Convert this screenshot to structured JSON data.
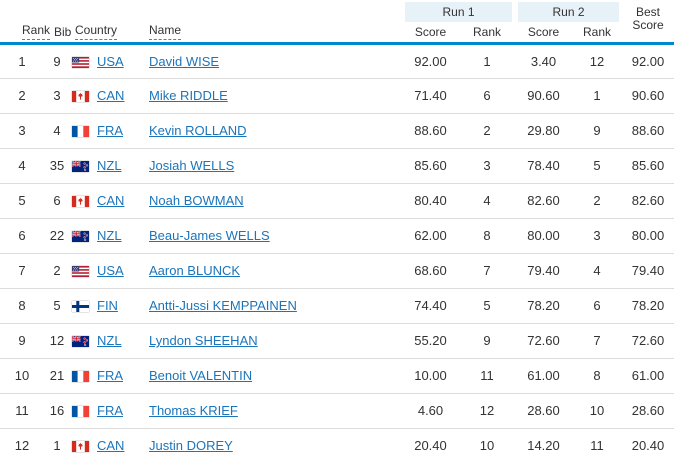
{
  "header": {
    "run1_label": "Run 1",
    "run2_label": "Run 2",
    "best_score_line1": "Best",
    "best_score_line2": "Score",
    "columns": {
      "rank": "Rank",
      "bib": "Bib",
      "country": "Country",
      "name": "Name",
      "run1_score": "Score",
      "run1_rank": "Rank",
      "run2_score": "Score",
      "run2_rank": "Rank"
    }
  },
  "rows": [
    {
      "rank": "1",
      "bib": "9",
      "country_code": "USA",
      "name": "David WISE",
      "run1_score": "92.00",
      "run1_rank": "1",
      "run2_score": "3.40",
      "run2_rank": "12",
      "best_score": "92.00"
    },
    {
      "rank": "2",
      "bib": "3",
      "country_code": "CAN",
      "name": "Mike RIDDLE",
      "run1_score": "71.40",
      "run1_rank": "6",
      "run2_score": "90.60",
      "run2_rank": "1",
      "best_score": "90.60"
    },
    {
      "rank": "3",
      "bib": "4",
      "country_code": "FRA",
      "name": "Kevin ROLLAND",
      "run1_score": "88.60",
      "run1_rank": "2",
      "run2_score": "29.80",
      "run2_rank": "9",
      "best_score": "88.60"
    },
    {
      "rank": "4",
      "bib": "35",
      "country_code": "NZL",
      "name": "Josiah WELLS",
      "run1_score": "85.60",
      "run1_rank": "3",
      "run2_score": "78.40",
      "run2_rank": "5",
      "best_score": "85.60"
    },
    {
      "rank": "5",
      "bib": "6",
      "country_code": "CAN",
      "name": "Noah BOWMAN",
      "run1_score": "80.40",
      "run1_rank": "4",
      "run2_score": "82.60",
      "run2_rank": "2",
      "best_score": "82.60"
    },
    {
      "rank": "6",
      "bib": "22",
      "country_code": "NZL",
      "name": "Beau-James WELLS",
      "run1_score": "62.00",
      "run1_rank": "8",
      "run2_score": "80.00",
      "run2_rank": "3",
      "best_score": "80.00"
    },
    {
      "rank": "7",
      "bib": "2",
      "country_code": "USA",
      "name": "Aaron BLUNCK",
      "run1_score": "68.60",
      "run1_rank": "7",
      "run2_score": "79.40",
      "run2_rank": "4",
      "best_score": "79.40"
    },
    {
      "rank": "8",
      "bib": "5",
      "country_code": "FIN",
      "name": "Antti-Jussi KEMPPAINEN",
      "run1_score": "74.40",
      "run1_rank": "5",
      "run2_score": "78.20",
      "run2_rank": "6",
      "best_score": "78.20"
    },
    {
      "rank": "9",
      "bib": "12",
      "country_code": "NZL",
      "name": "Lyndon SHEEHAN",
      "run1_score": "55.20",
      "run1_rank": "9",
      "run2_score": "72.60",
      "run2_rank": "7",
      "best_score": "72.60"
    },
    {
      "rank": "10",
      "bib": "21",
      "country_code": "FRA",
      "name": "Benoit VALENTIN",
      "run1_score": "10.00",
      "run1_rank": "11",
      "run2_score": "61.00",
      "run2_rank": "8",
      "best_score": "61.00"
    },
    {
      "rank": "11",
      "bib": "16",
      "country_code": "FRA",
      "name": "Thomas KRIEF",
      "run1_score": "4.60",
      "run1_rank": "12",
      "run2_score": "28.60",
      "run2_rank": "10",
      "best_score": "28.60"
    },
    {
      "rank": "12",
      "bib": "1",
      "country_code": "CAN",
      "name": "Justin DOREY",
      "run1_score": "20.40",
      "run1_rank": "10",
      "run2_score": "14.20",
      "run2_rank": "11",
      "best_score": "20.40"
    }
  ],
  "colors": {
    "accent_blue": "#0088CC",
    "link_blue": "#1B75BB",
    "group_header_bg": "#E7F2F8",
    "row_border": "#DDDDDD",
    "text": "#333333"
  }
}
